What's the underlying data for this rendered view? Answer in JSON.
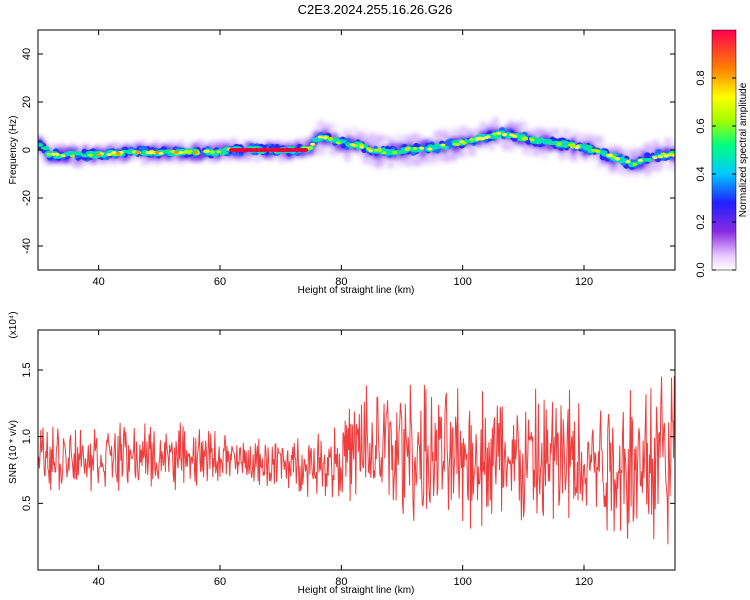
{
  "title": "C2E3.2024.255.16.26.G26",
  "chart_data": [
    {
      "type": "heatmap",
      "xlabel": "Height of straight line (km)",
      "ylabel": "Frequency (Hz)",
      "xlim": [
        30,
        135
      ],
      "ylim": [
        -50,
        50
      ],
      "xticks": [
        40,
        60,
        80,
        100,
        120
      ],
      "yticks": [
        -40,
        -20,
        0,
        20,
        40
      ],
      "colorbar": {
        "label": "Normalized spectral amplitude",
        "range": [
          0,
          1
        ],
        "ticks": [
          0.0,
          0.2,
          0.4,
          0.6,
          0.8
        ]
      },
      "ridge": {
        "x": [
          30,
          32,
          35,
          40,
          45,
          50,
          55,
          60,
          62,
          65,
          70,
          73,
          75,
          76,
          78,
          80,
          83,
          85,
          88,
          90,
          95,
          100,
          103,
          105,
          107,
          110,
          115,
          120,
          125,
          128,
          130,
          133,
          135
        ],
        "y": [
          3,
          -2,
          -2,
          -2,
          -1,
          -1,
          -1,
          -1,
          0,
          0,
          0,
          0,
          1,
          5,
          5,
          3,
          2,
          0,
          -1,
          0,
          1,
          3,
          5,
          6,
          7,
          5,
          3,
          1,
          -3,
          -6,
          -4,
          -2,
          -2
        ]
      }
    },
    {
      "type": "line",
      "xlabel": "Height of straight line (km)",
      "ylabel": "SNR (10 * v/v)",
      "multiplier": "(x10⁴)",
      "xlim": [
        30,
        135
      ],
      "ylim": [
        0.0,
        1.8
      ],
      "xticks": [
        40,
        60,
        80,
        100,
        120
      ],
      "yticks": [
        0.5,
        1.0,
        1.5
      ],
      "series": [
        {
          "color": "#f03c3c",
          "envelope": {
            "x": [
              30,
              40,
              50,
              60,
              64,
              70,
              75,
              80,
              85,
              90,
              95,
              100,
              105,
              110,
              115,
              120,
              125,
              130,
              135
            ],
            "mean": [
              0.85,
              0.85,
              0.85,
              0.85,
              0.8,
              0.8,
              0.78,
              0.85,
              0.9,
              0.9,
              0.85,
              0.85,
              0.85,
              0.8,
              0.8,
              0.85,
              0.8,
              0.85,
              0.9
            ],
            "spread": [
              0.18,
              0.18,
              0.18,
              0.15,
              0.12,
              0.15,
              0.15,
              0.25,
              0.4,
              0.42,
              0.35,
              0.38,
              0.38,
              0.38,
              0.45,
              0.38,
              0.42,
              0.5,
              0.5
            ]
          }
        }
      ]
    }
  ]
}
